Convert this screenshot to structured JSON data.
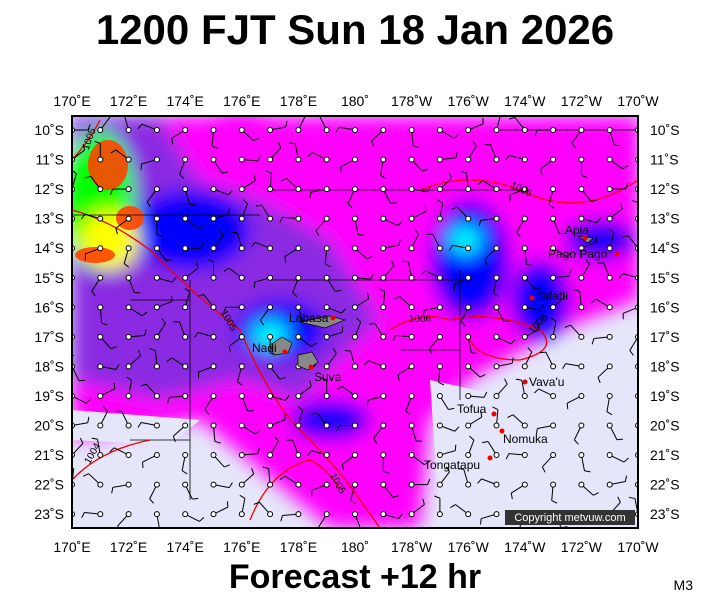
{
  "title": "1200 FJT Sun 18 Jan 2026",
  "footer": "Forecast +12 hr",
  "model": "M3",
  "copyright": "Copyright metvuw.com",
  "longitudes": [
    "170˚E",
    "172˚E",
    "174˚E",
    "176˚E",
    "178˚E",
    "180˚",
    "178˚W",
    "176˚W",
    "174˚W",
    "172˚W",
    "170˚W"
  ],
  "latitudes": [
    "10˚S",
    "11˚S",
    "12˚S",
    "13˚S",
    "14˚S",
    "15˚S",
    "16˚S",
    "17˚S",
    "18˚S",
    "19˚S",
    "20˚S",
    "21˚S",
    "22˚S",
    "23˚S"
  ],
  "places": [
    "Apia",
    "Pago Pago",
    "Tafahi",
    "Labasa",
    "Nadi",
    "Suva",
    "Vava'u",
    "Tofua",
    "Nomuka",
    "Tongatapu"
  ],
  "isobars": [
    "1005",
    "1006",
    "1005",
    "1006",
    "1006",
    "1004",
    "1005"
  ]
}
